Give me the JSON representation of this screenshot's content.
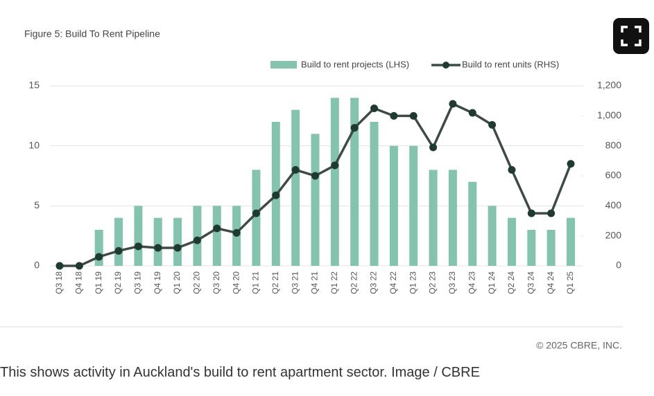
{
  "chart_data": {
    "type": "bar",
    "title": "Figure 5: Build To Rent Pipeline",
    "credit": "© 2025 CBRE, INC.",
    "categories": [
      "Q3 18",
      "Q4 18",
      "Q1 19",
      "Q2 19",
      "Q3 19",
      "Q4 19",
      "Q1 20",
      "Q2 20",
      "Q3 20",
      "Q4 20",
      "Q1 21",
      "Q2 21",
      "Q3 21",
      "Q4 21",
      "Q1 22",
      "Q2 22",
      "Q3 22",
      "Q4 22",
      "Q1 23",
      "Q2 23",
      "Q3 23",
      "Q4 23",
      "Q1 24",
      "Q2 24",
      "Q3 24",
      "Q4 24",
      "Q1 25"
    ],
    "series": [
      {
        "name": "Build to rent projects (LHS)",
        "type": "bar",
        "color": "#84c3ad",
        "values": [
          0,
          0,
          3,
          4,
          5,
          4,
          4,
          5,
          5,
          5,
          8,
          12,
          13,
          11,
          14,
          14,
          12,
          10,
          10,
          8,
          8,
          7,
          5,
          4,
          3,
          3,
          4
        ]
      },
      {
        "name": "Build to rent units (RHS)",
        "type": "line",
        "axis": "y2",
        "color": "#3d4a45",
        "marker_color": "#1f3a30",
        "values": [
          0,
          0,
          60,
          100,
          130,
          120,
          120,
          170,
          250,
          220,
          350,
          470,
          640,
          600,
          670,
          920,
          1050,
          1000,
          1000,
          790,
          1080,
          1020,
          940,
          640,
          350,
          350,
          680
        ]
      }
    ],
    "ylim": [
      0,
      15
    ],
    "yticks": [
      0,
      5,
      10,
      15
    ],
    "y2lim": [
      0,
      1200
    ],
    "y2ticks": [
      0,
      200,
      400,
      600,
      800,
      {
        "value": 1000,
        "label": "1,000"
      },
      {
        "value": 1200,
        "label": "1,200"
      }
    ],
    "grid": true
  },
  "caption": "This shows activity in Auckland's build to rent apartment sector. Image / CBRE"
}
